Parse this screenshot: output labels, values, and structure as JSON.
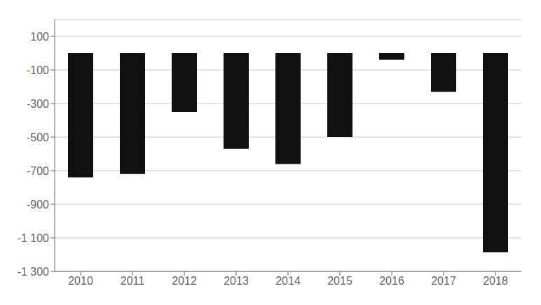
{
  "chart_data": {
    "type": "bar",
    "categories": [
      "2010",
      "2011",
      "2012",
      "2013",
      "2014",
      "2015",
      "2016",
      "2017",
      "2018"
    ],
    "values": [
      -740,
      -720,
      -350,
      -570,
      -660,
      -500,
      -40,
      -230,
      -1185
    ],
    "color": "#111111",
    "ylim": [
      -1300,
      200
    ],
    "yticks": [
      100,
      -100,
      -300,
      -500,
      -700,
      -900,
      {
        "value": -1100,
        "label": "-1 100"
      },
      {
        "value": -1300,
        "label": "-1 300"
      }
    ],
    "grid": true
  }
}
